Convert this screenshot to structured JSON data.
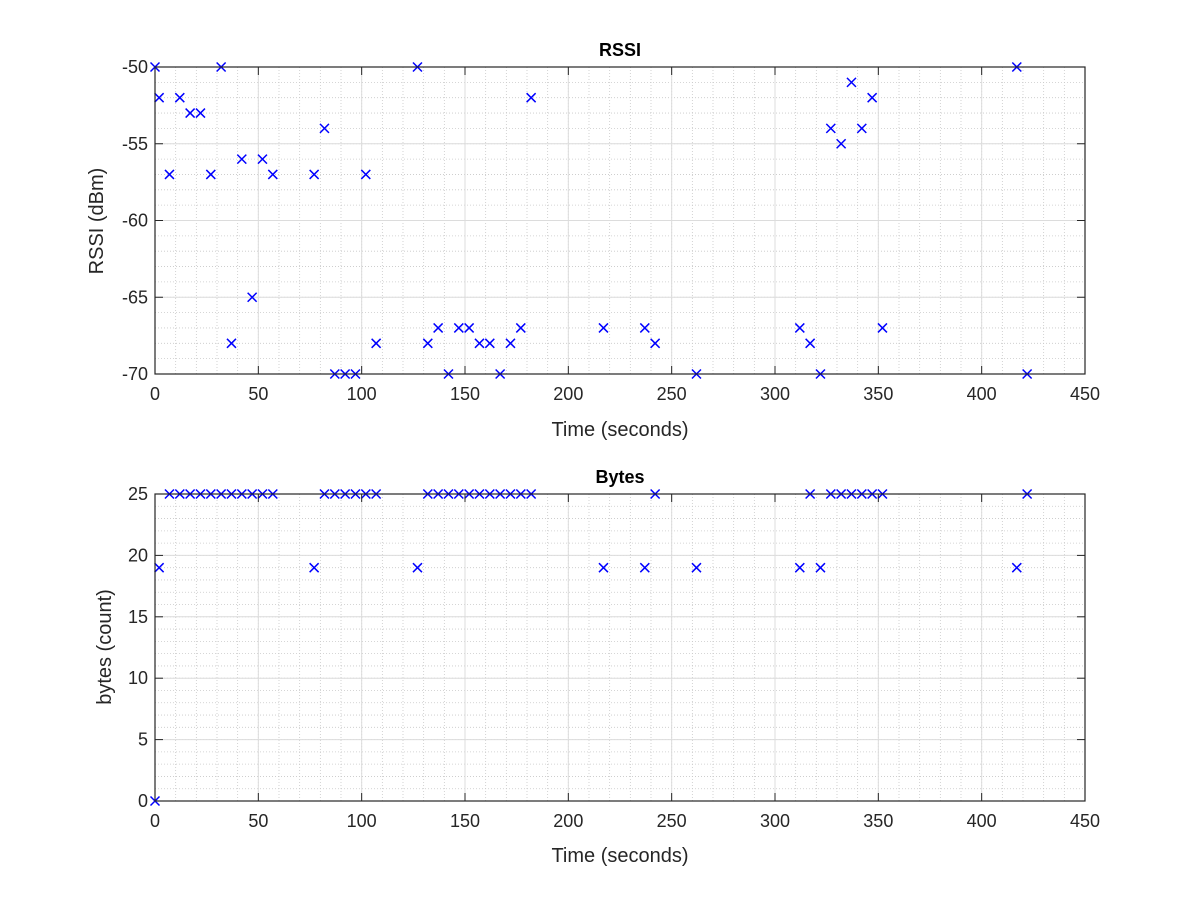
{
  "chart_data": [
    {
      "type": "scatter",
      "title": "RSSI",
      "xlabel": "Time (seconds)",
      "ylabel": "RSSI (dBm)",
      "xlim": [
        0,
        450
      ],
      "ylim": [
        -70,
        -50
      ],
      "xticks": [
        0,
        50,
        100,
        150,
        200,
        250,
        300,
        350,
        400,
        450
      ],
      "yticks": [
        -70,
        -65,
        -60,
        -55,
        -50
      ],
      "grid": true,
      "minor_grid": true,
      "marker": "x",
      "color": "#0000ff",
      "x": [
        0,
        2,
        7,
        12,
        17,
        22,
        27,
        32,
        37,
        42,
        47,
        52,
        57,
        77,
        82,
        87,
        92,
        97,
        102,
        107,
        127,
        132,
        137,
        142,
        147,
        152,
        157,
        162,
        167,
        172,
        177,
        182,
        217,
        237,
        242,
        262,
        312,
        317,
        322,
        327,
        332,
        337,
        342,
        347,
        352,
        417,
        422
      ],
      "y": [
        -50,
        -52,
        -57,
        -52,
        -53,
        -53,
        -57,
        -50,
        -68,
        -56,
        -65,
        -56,
        -57,
        -57,
        -54,
        -70,
        -70,
        -70,
        -57,
        -68,
        -50,
        -68,
        -67,
        -70,
        -67,
        -67,
        -68,
        -68,
        -70,
        -68,
        -67,
        -52,
        -67,
        -67,
        -68,
        -70,
        -67,
        -68,
        -70,
        -54,
        -55,
        -51,
        -54,
        -52,
        -67,
        -50,
        -70
      ]
    },
    {
      "type": "scatter",
      "title": "Bytes",
      "xlabel": "Time (seconds)",
      "ylabel": "bytes (count)",
      "xlim": [
        0,
        450
      ],
      "ylim": [
        0,
        25
      ],
      "xticks": [
        0,
        50,
        100,
        150,
        200,
        250,
        300,
        350,
        400,
        450
      ],
      "yticks": [
        0,
        5,
        10,
        15,
        20,
        25
      ],
      "grid": true,
      "minor_grid": true,
      "marker": "x",
      "color": "#0000ff",
      "x": [
        0,
        2,
        7,
        12,
        17,
        22,
        27,
        32,
        37,
        42,
        47,
        52,
        57,
        77,
        82,
        87,
        92,
        97,
        102,
        107,
        127,
        132,
        137,
        142,
        147,
        152,
        157,
        162,
        167,
        172,
        177,
        182,
        217,
        237,
        242,
        262,
        312,
        317,
        322,
        327,
        332,
        337,
        342,
        347,
        352,
        417,
        422
      ],
      "y": [
        0,
        19,
        25,
        25,
        25,
        25,
        25,
        25,
        25,
        25,
        25,
        25,
        25,
        19,
        25,
        25,
        25,
        25,
        25,
        25,
        19,
        25,
        25,
        25,
        25,
        25,
        25,
        25,
        25,
        25,
        25,
        25,
        19,
        19,
        25,
        19,
        19,
        25,
        19,
        25,
        25,
        25,
        25,
        25,
        25,
        19,
        25
      ]
    }
  ]
}
